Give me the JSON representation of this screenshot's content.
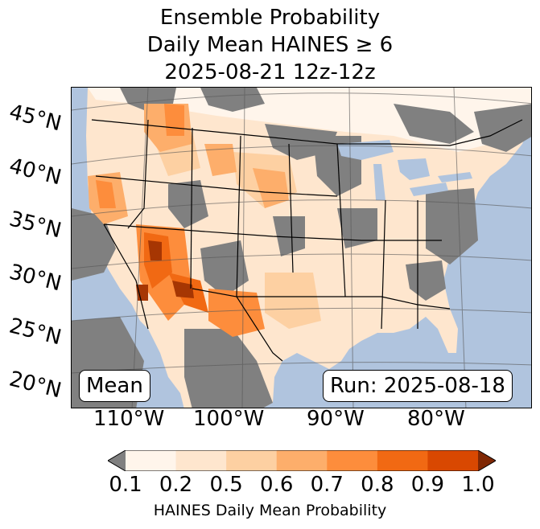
{
  "title": {
    "line1": "Ensemble Probability",
    "line2": "Daily Mean HAINES ≥ 6",
    "line3": "2025-08-21 12z-12z"
  },
  "map": {
    "lat_labels": [
      "45°N",
      "40°N",
      "35°N",
      "30°N",
      "25°N",
      "20°N"
    ],
    "lon_labels": [
      "110°W",
      "100°W",
      "90°W",
      "80°W"
    ],
    "colors": {
      "ocean": "#b0c4de",
      "missing": "#808080",
      "low": "#fff5eb",
      "bin1": "#fee6ce",
      "bin2": "#fdd0a2",
      "bin3": "#fdae6b",
      "bin4": "#fd8d3c",
      "bin5": "#f16913",
      "bin6": "#d94801",
      "bin7": "#a63603"
    }
  },
  "mean_box": "Mean",
  "run_box": "Run: 2025-08-18",
  "colorbar": {
    "ticks": [
      "0.1",
      "0.2",
      "0.5",
      "0.6",
      "0.7",
      "0.8",
      "0.9",
      "1.0"
    ],
    "colors": [
      "#fff5eb",
      "#fee6ce",
      "#fdd0a2",
      "#fdae6b",
      "#fd8d3c",
      "#f16913",
      "#d94801"
    ],
    "under_color": "#808080",
    "over_color": "#7f2704",
    "label": "HAINES Daily Mean Probability"
  }
}
